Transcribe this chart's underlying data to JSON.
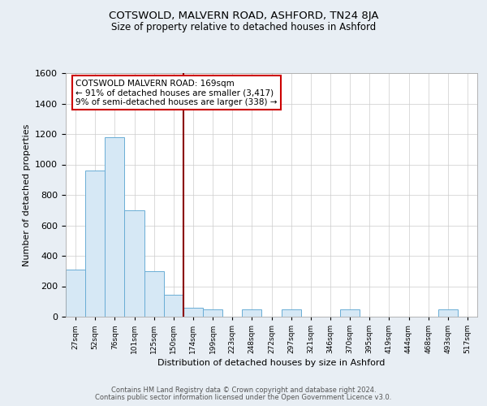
{
  "title": "COTSWOLD, MALVERN ROAD, ASHFORD, TN24 8JA",
  "subtitle": "Size of property relative to detached houses in Ashford",
  "xlabel": "Distribution of detached houses by size in Ashford",
  "ylabel": "Number of detached properties",
  "bins": [
    "27sqm",
    "52sqm",
    "76sqm",
    "101sqm",
    "125sqm",
    "150sqm",
    "174sqm",
    "199sqm",
    "223sqm",
    "248sqm",
    "272sqm",
    "297sqm",
    "321sqm",
    "346sqm",
    "370sqm",
    "395sqm",
    "419sqm",
    "444sqm",
    "468sqm",
    "493sqm",
    "517sqm"
  ],
  "bar_values": [
    310,
    960,
    1180,
    700,
    300,
    145,
    60,
    50,
    0,
    50,
    0,
    50,
    0,
    0,
    50,
    0,
    0,
    0,
    0,
    50,
    0
  ],
  "bar_color": "#d6e8f5",
  "bar_edge_color": "#6aadd5",
  "vline_color": "#8b0000",
  "annotation_text": "COTSWOLD MALVERN ROAD: 169sqm\n← 91% of detached houses are smaller (3,417)\n9% of semi-detached houses are larger (338) →",
  "annotation_box_facecolor": "#ffffff",
  "annotation_box_edgecolor": "#cc0000",
  "ylim": [
    0,
    1600
  ],
  "yticks": [
    0,
    200,
    400,
    600,
    800,
    1000,
    1200,
    1400,
    1600
  ],
  "footer1": "Contains HM Land Registry data © Crown copyright and database right 2024.",
  "footer2": "Contains public sector information licensed under the Open Government Licence v3.0.",
  "fig_bg_color": "#e8eef4",
  "plot_bg_color": "#ffffff",
  "grid_color": "#cccccc"
}
